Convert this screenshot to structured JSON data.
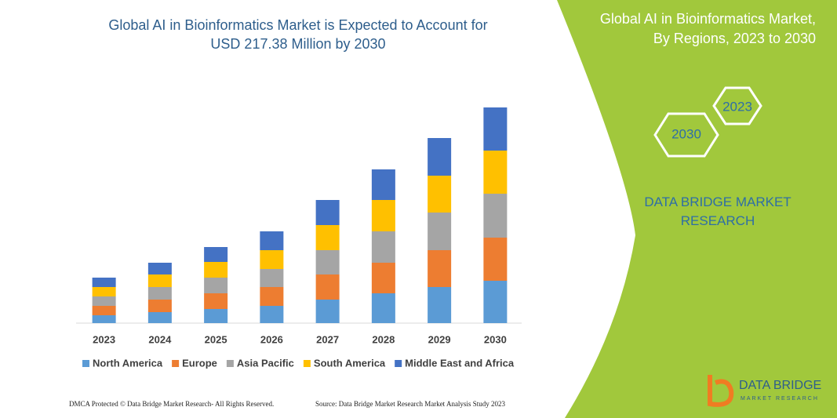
{
  "title": "Global AI in Bioinformatics Market is Expected to Account for USD 217.38 Million by 2030",
  "panel": {
    "title": "Global AI in Bioinformatics Market, By Regions, 2023 to 2030",
    "hexagons": [
      "2023",
      "2030"
    ],
    "brand": "DATA BRIDGE MARKET RESEARCH"
  },
  "footer": {
    "left": "DMCA Protected © Data Bridge Market Research- All Rights Reserved.",
    "right": "Source: Data Bridge Market Research Market Analysis Study 2023"
  },
  "logo": {
    "name": "DATA BRIDGE",
    "tagline": "MARKET RESEARCH"
  },
  "chart_data": {
    "type": "stacked_bar",
    "categories": [
      "2023",
      "2024",
      "2025",
      "2026",
      "2027",
      "2028",
      "2029",
      "2030"
    ],
    "series": [
      {
        "name": "North America",
        "color": "#5b9bd5",
        "values": [
          10,
          14,
          18,
          22,
          30,
          38,
          46,
          54
        ]
      },
      {
        "name": "Europe",
        "color": "#ed7d31",
        "values": [
          12,
          16,
          20,
          24,
          32,
          39,
          47,
          55
        ]
      },
      {
        "name": "Asia Pacific",
        "color": "#a5a5a5",
        "values": [
          12,
          16,
          20,
          23,
          31,
          40,
          48,
          56
        ]
      },
      {
        "name": "South America",
        "color": "#ffc000",
        "values": [
          12,
          16,
          20,
          24,
          32,
          40,
          47,
          55
        ]
      },
      {
        "name": "Middle East and Africa",
        "color": "#4472c4",
        "values": [
          12,
          15,
          19,
          24,
          32,
          39,
          48,
          55
        ]
      }
    ]
  }
}
